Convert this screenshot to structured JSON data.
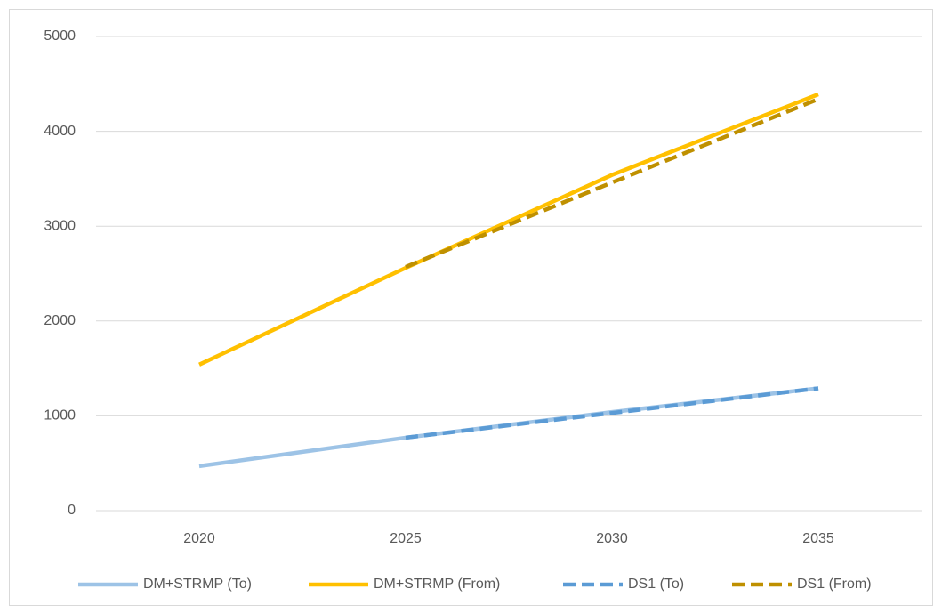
{
  "chart_data": {
    "type": "line",
    "categories": [
      "2020",
      "2025",
      "2030",
      "2035"
    ],
    "series": [
      {
        "name": "DM+STRMP (To)",
        "color": "#9dc3e6",
        "dashed": false,
        "values": [
          470,
          770,
          1040,
          1290
        ]
      },
      {
        "name": "DM+STRMP (From)",
        "color": "#ffc000",
        "dashed": false,
        "values": [
          1540,
          2560,
          3540,
          4390
        ]
      },
      {
        "name": "DS1 (To)",
        "color": "#5b9bd5",
        "dashed": true,
        "values": [
          null,
          770,
          1030,
          1290
        ]
      },
      {
        "name": "DS1 (From)",
        "color": "#bf9000",
        "dashed": true,
        "values": [
          null,
          2570,
          3460,
          4340
        ]
      }
    ],
    "ylim": [
      0,
      5000
    ],
    "yticks": [
      0,
      1000,
      2000,
      3000,
      4000,
      5000
    ],
    "grid": true,
    "legend": "bottom"
  }
}
